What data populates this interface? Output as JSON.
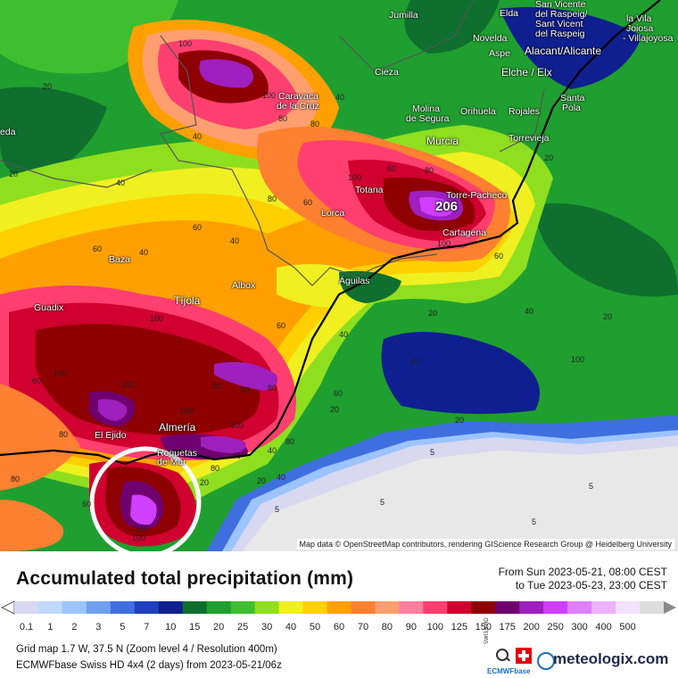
{
  "map": {
    "attribution": "Map data © OpenStreetMap contributors, rendering GIScience Research Group @ Heidelberg University",
    "max_value": "206",
    "cities": [
      {
        "name": "Jumilla"
      },
      {
        "name": "Elda"
      },
      {
        "name": "San Vicente"
      },
      {
        "name": "del Raspeig/"
      },
      {
        "name": "Sant Vicent"
      },
      {
        "name": "del Raspeig"
      },
      {
        "name": "la Vila"
      },
      {
        "name": "Joiosa"
      },
      {
        "name": "- Villajoyosa"
      },
      {
        "name": "Novelda"
      },
      {
        "name": "Aspe"
      },
      {
        "name": "Alacant/Alicante"
      },
      {
        "name": "Cieza"
      },
      {
        "name": "Elche / Elx"
      },
      {
        "name": "Caravaca"
      },
      {
        "name": "de la Cruz"
      },
      {
        "name": "Molina"
      },
      {
        "name": "de Segura"
      },
      {
        "name": "Orihuela"
      },
      {
        "name": "Rojales"
      },
      {
        "name": "Santa"
      },
      {
        "name": "Pola"
      },
      {
        "name": "Murcia"
      },
      {
        "name": "Torrevieja"
      },
      {
        "name": "eda"
      },
      {
        "name": "Totana"
      },
      {
        "name": "Torre-Pacheco"
      },
      {
        "name": "Lorca"
      },
      {
        "name": "Cartagena"
      },
      {
        "name": "Baza"
      },
      {
        "name": "Albox"
      },
      {
        "name": "Águilas"
      },
      {
        "name": "Tíjola"
      },
      {
        "name": "Guadix"
      },
      {
        "name": "Almería"
      },
      {
        "name": "El Ejido"
      },
      {
        "name": "Roquetas"
      },
      {
        "name": "de Mar"
      }
    ],
    "contours": [
      "20",
      "100",
      "100",
      "40",
      "80",
      "40",
      "20",
      "80",
      "60",
      "100",
      "80",
      "60",
      "40",
      "20",
      "60",
      "40",
      "80",
      "100",
      "60",
      "40",
      "60",
      "60",
      "100",
      "20",
      "40",
      "100",
      "20",
      "40",
      "60",
      "80",
      "20",
      "80",
      "100",
      "100",
      "100",
      "40",
      "60",
      "20",
      "100",
      "20",
      "40",
      "80",
      "40",
      "5",
      "20",
      "40",
      "5",
      "80",
      "80",
      "60",
      "20",
      "80",
      "5",
      "100",
      "150",
      "5",
      "5"
    ]
  },
  "legend": {
    "title": "Accumulated total precipitation (mm)",
    "from": "From Sun 2023-05-21, 08:00 CEST",
    "to": "to Tue 2023-05-23, 23:00 CEST",
    "ticks": [
      "0.1",
      "1",
      "2",
      "3",
      "5",
      "7",
      "10",
      "15",
      "20",
      "25",
      "30",
      "40",
      "50",
      "60",
      "70",
      "80",
      "90",
      "100",
      "125",
      "150",
      "175",
      "200",
      "250",
      "300",
      "400",
      "500"
    ],
    "colors": [
      "#d8d8f0",
      "#c0d8ff",
      "#9cc4ff",
      "#6fa0ef",
      "#3f6fdf",
      "#1f3fbf",
      "#0f1f8f",
      "#0f6f2f",
      "#1f9f2f",
      "#3fbf2f",
      "#8fdf1f",
      "#f0f020",
      "#ffd000",
      "#ffa000",
      "#ff8030",
      "#ff9f70",
      "#ff7f9f",
      "#ff3f6f",
      "#d0002f",
      "#8f0000",
      "#6f006f",
      "#9f1fbf",
      "#cf3fff",
      "#e07fff",
      "#efb0ff",
      "#f4e0ff",
      "#ddd"
    ],
    "grid_info": "Grid map 1.7 W, 37.5 N (Zoom level 4 / Resolution 400m)",
    "model_info": "ECMWFbase Swiss HD 4x4 (2 days) from  2023-05-21/06z",
    "brand": "meteologix.com",
    "brand_small": "ECMWFbase",
    "brand_swiss": "SWISS HD"
  }
}
